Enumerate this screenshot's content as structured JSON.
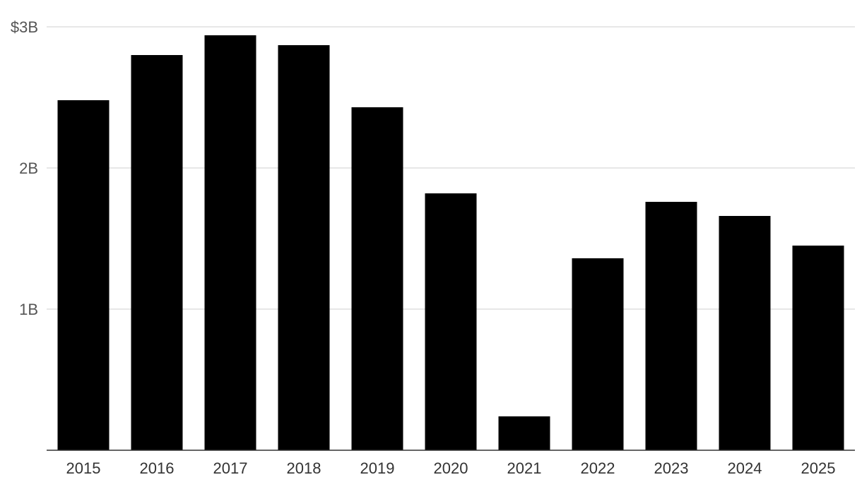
{
  "chart_data": {
    "type": "bar",
    "title": "",
    "xlabel": "",
    "ylabel": "",
    "categories": [
      "2015",
      "2016",
      "2017",
      "2018",
      "2019",
      "2020",
      "2021",
      "2022",
      "2023",
      "2024",
      "2025"
    ],
    "values": [
      2.48,
      2.8,
      2.94,
      2.87,
      2.43,
      1.82,
      0.24,
      1.36,
      1.76,
      1.66,
      1.45
    ],
    "value_unit": "billions of dollars",
    "ylim": [
      0,
      3
    ],
    "yticks": [
      {
        "value": 1,
        "label": "1B"
      },
      {
        "value": 2,
        "label": "2B"
      },
      {
        "value": 3,
        "label": "$3B"
      }
    ],
    "grid": true,
    "legend": "none",
    "colors": {
      "bar": "#000000",
      "grid": "#cfcfcf",
      "axis": "#333333",
      "tick_text": "#555555",
      "category_text": "#333333"
    }
  }
}
